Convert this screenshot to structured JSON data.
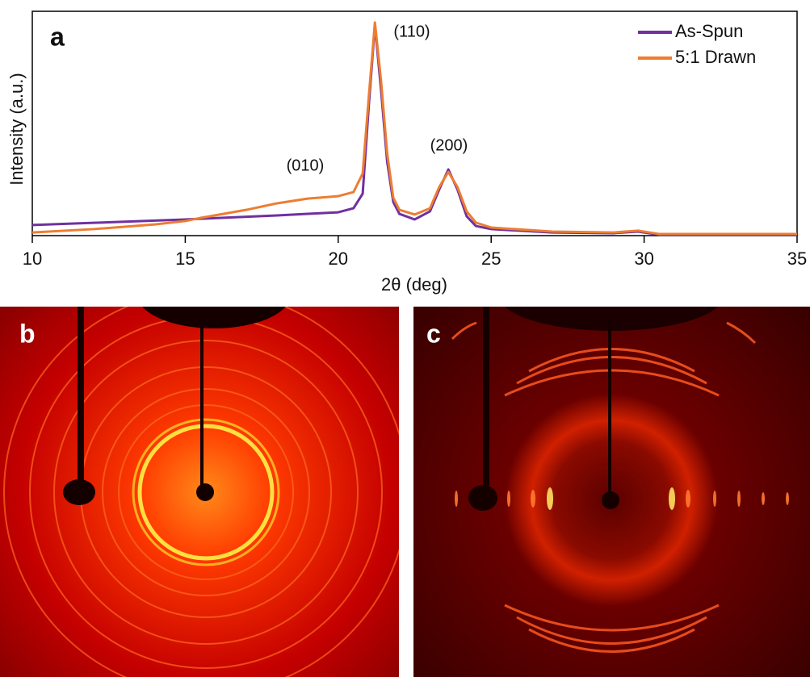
{
  "chart_data": {
    "type": "line",
    "panel_label": "a",
    "xlabel": "2θ (deg)",
    "ylabel": "Intensity (a.u.)",
    "x": [
      10,
      12,
      14,
      15,
      15.5,
      17,
      18,
      19,
      20,
      20.5,
      20.8,
      21,
      21.2,
      21.4,
      21.6,
      21.8,
      22,
      22.5,
      23,
      23.3,
      23.6,
      23.9,
      24.2,
      24.5,
      25,
      27,
      29,
      29.8,
      30.5,
      35
    ],
    "series": [
      {
        "name": "As-Spun",
        "color": "#7030a0",
        "values": [
          4.7,
          5.7,
          6.7,
          7.2,
          7.5,
          8.4,
          9,
          9.7,
          10.4,
          12.2,
          18.7,
          58,
          94,
          65,
          33,
          15,
          9.7,
          7.2,
          10.8,
          20.5,
          29.5,
          20.5,
          8.6,
          4.3,
          2.9,
          1.4,
          1.1,
          1.8,
          0.4,
          0.4
        ]
      },
      {
        "name": "5:1 Drawn",
        "color": "#ed7d31",
        "values": [
          1.4,
          2.9,
          5,
          6.5,
          7.9,
          11.5,
          14.4,
          16.5,
          17.6,
          19.4,
          27.7,
          61.9,
          95,
          69,
          36.7,
          16.9,
          11.5,
          9.4,
          12.2,
          21.6,
          28.4,
          21.6,
          10.8,
          5.8,
          3.6,
          1.8,
          1.4,
          2.2,
          0.7,
          0.7
        ]
      }
    ],
    "annotations": [
      "(010)",
      "(110)",
      "(200)"
    ],
    "xlim": [
      10,
      35
    ],
    "xticks": [
      10,
      15,
      20,
      25,
      30,
      35
    ],
    "ylim": [
      0,
      100
    ],
    "legend": "upper right"
  },
  "images": [
    {
      "panel_label": "b"
    },
    {
      "panel_label": "c"
    }
  ]
}
